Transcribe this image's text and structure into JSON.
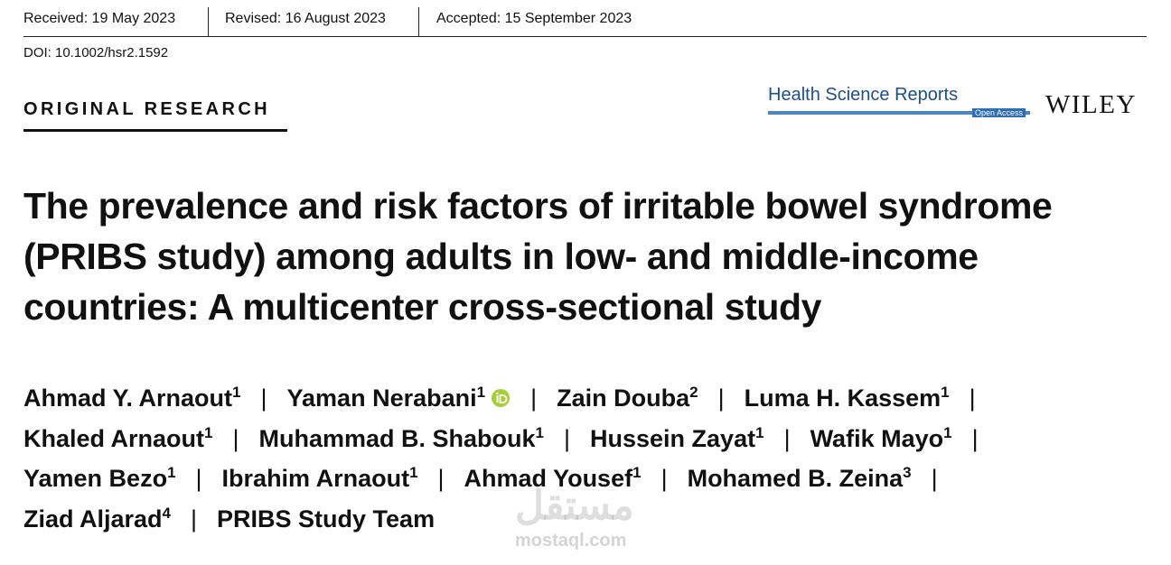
{
  "dates": [
    "Received: 19 May 2023",
    "Revised: 16 August 2023",
    "Accepted: 15 September 2023"
  ],
  "doi": "DOI: 10.1002/hsr2.1592",
  "section": "ORIGINAL RESEARCH",
  "journal": {
    "name": "Health Science Reports",
    "badge": "Open Access",
    "publisher": "WILEY"
  },
  "title": [
    "The prevalence and risk factors of irritable bowel syndrome",
    "(PRIBS study) among adults in low- and middle-income",
    "countries: A multicenter cross-sectional study"
  ],
  "separator": "|",
  "authors": [
    {
      "name": "Ahmad Y. Arnaout",
      "affiliation": "1"
    },
    {
      "name": "Yaman Nerabani",
      "affiliation": "1"
    },
    {
      "name": "Zain Douba",
      "affiliation": "2"
    },
    {
      "name": "Luma H. Kassem",
      "affiliation": "1"
    },
    {
      "name": "Khaled Arnaout",
      "affiliation": "1"
    },
    {
      "name": "Muhammad B. Shabouk",
      "affiliation": "1"
    },
    {
      "name": "Hussein Zayat",
      "affiliation": "1"
    },
    {
      "name": "Wafik Mayo",
      "affiliation": "1"
    },
    {
      "name": "Yamen Bezo",
      "affiliation": "1"
    },
    {
      "name": "Ibrahim Arnaout",
      "affiliation": "1"
    },
    {
      "name": "Ahmad Yousef",
      "affiliation": "1"
    },
    {
      "name": "Mohamed B. Zeina",
      "affiliation": "3"
    },
    {
      "name": "Ziad Aljarad",
      "affiliation": "4"
    },
    {
      "name": "PRIBS Study Team",
      "affiliation": null
    }
  ],
  "watermark": {
    "arabic": "مستقل",
    "site": "mostaql.com"
  }
}
